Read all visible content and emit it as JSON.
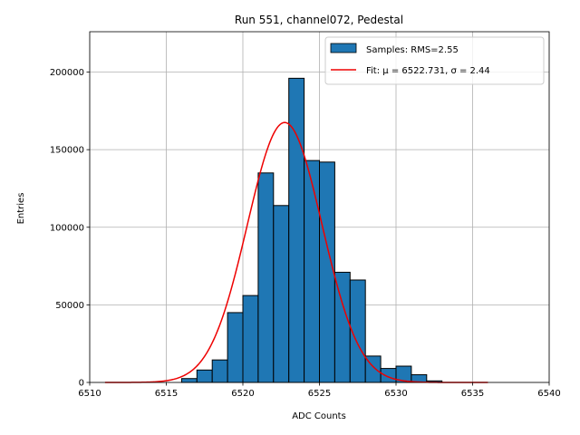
{
  "chart_data": {
    "type": "bar",
    "title": "Run 551, channel072, Pedestal",
    "xlabel": "ADC Counts",
    "ylabel": "Entries",
    "xlim": [
      6510,
      6540
    ],
    "ylim": [
      0,
      226000
    ],
    "grid": true,
    "legend_position": "top-right",
    "xticks": [
      6510,
      6515,
      6520,
      6525,
      6530,
      6535,
      6540
    ],
    "yticks": [
      0,
      50000,
      100000,
      150000,
      200000
    ],
    "bin_width": 1,
    "bins": [
      {
        "x": 6516,
        "count": 2500
      },
      {
        "x": 6517,
        "count": 8000
      },
      {
        "x": 6518,
        "count": 14500
      },
      {
        "x": 6519,
        "count": 45000
      },
      {
        "x": 6520,
        "count": 56000
      },
      {
        "x": 6521,
        "count": 135000
      },
      {
        "x": 6522,
        "count": 114000
      },
      {
        "x": 6523,
        "count": 196000
      },
      {
        "x": 6524,
        "count": 143000
      },
      {
        "x": 6525,
        "count": 142000
      },
      {
        "x": 6526,
        "count": 71000
      },
      {
        "x": 6527,
        "count": 66000
      },
      {
        "x": 6528,
        "count": 17000
      },
      {
        "x": 6529,
        "count": 9000
      },
      {
        "x": 6530,
        "count": 10500
      },
      {
        "x": 6531,
        "count": 5000
      },
      {
        "x": 6532,
        "count": 1000
      }
    ],
    "fit": {
      "mu": 6522.731,
      "sigma": 2.44,
      "amplitude": 167500,
      "x_range": [
        6511,
        6536
      ]
    },
    "legend": [
      {
        "label": "Samples: RMS=2.55",
        "color": "#1f77b4"
      },
      {
        "label": "Fit: μ = 6522.731, σ = 2.44",
        "color": "#ee0000"
      }
    ]
  }
}
